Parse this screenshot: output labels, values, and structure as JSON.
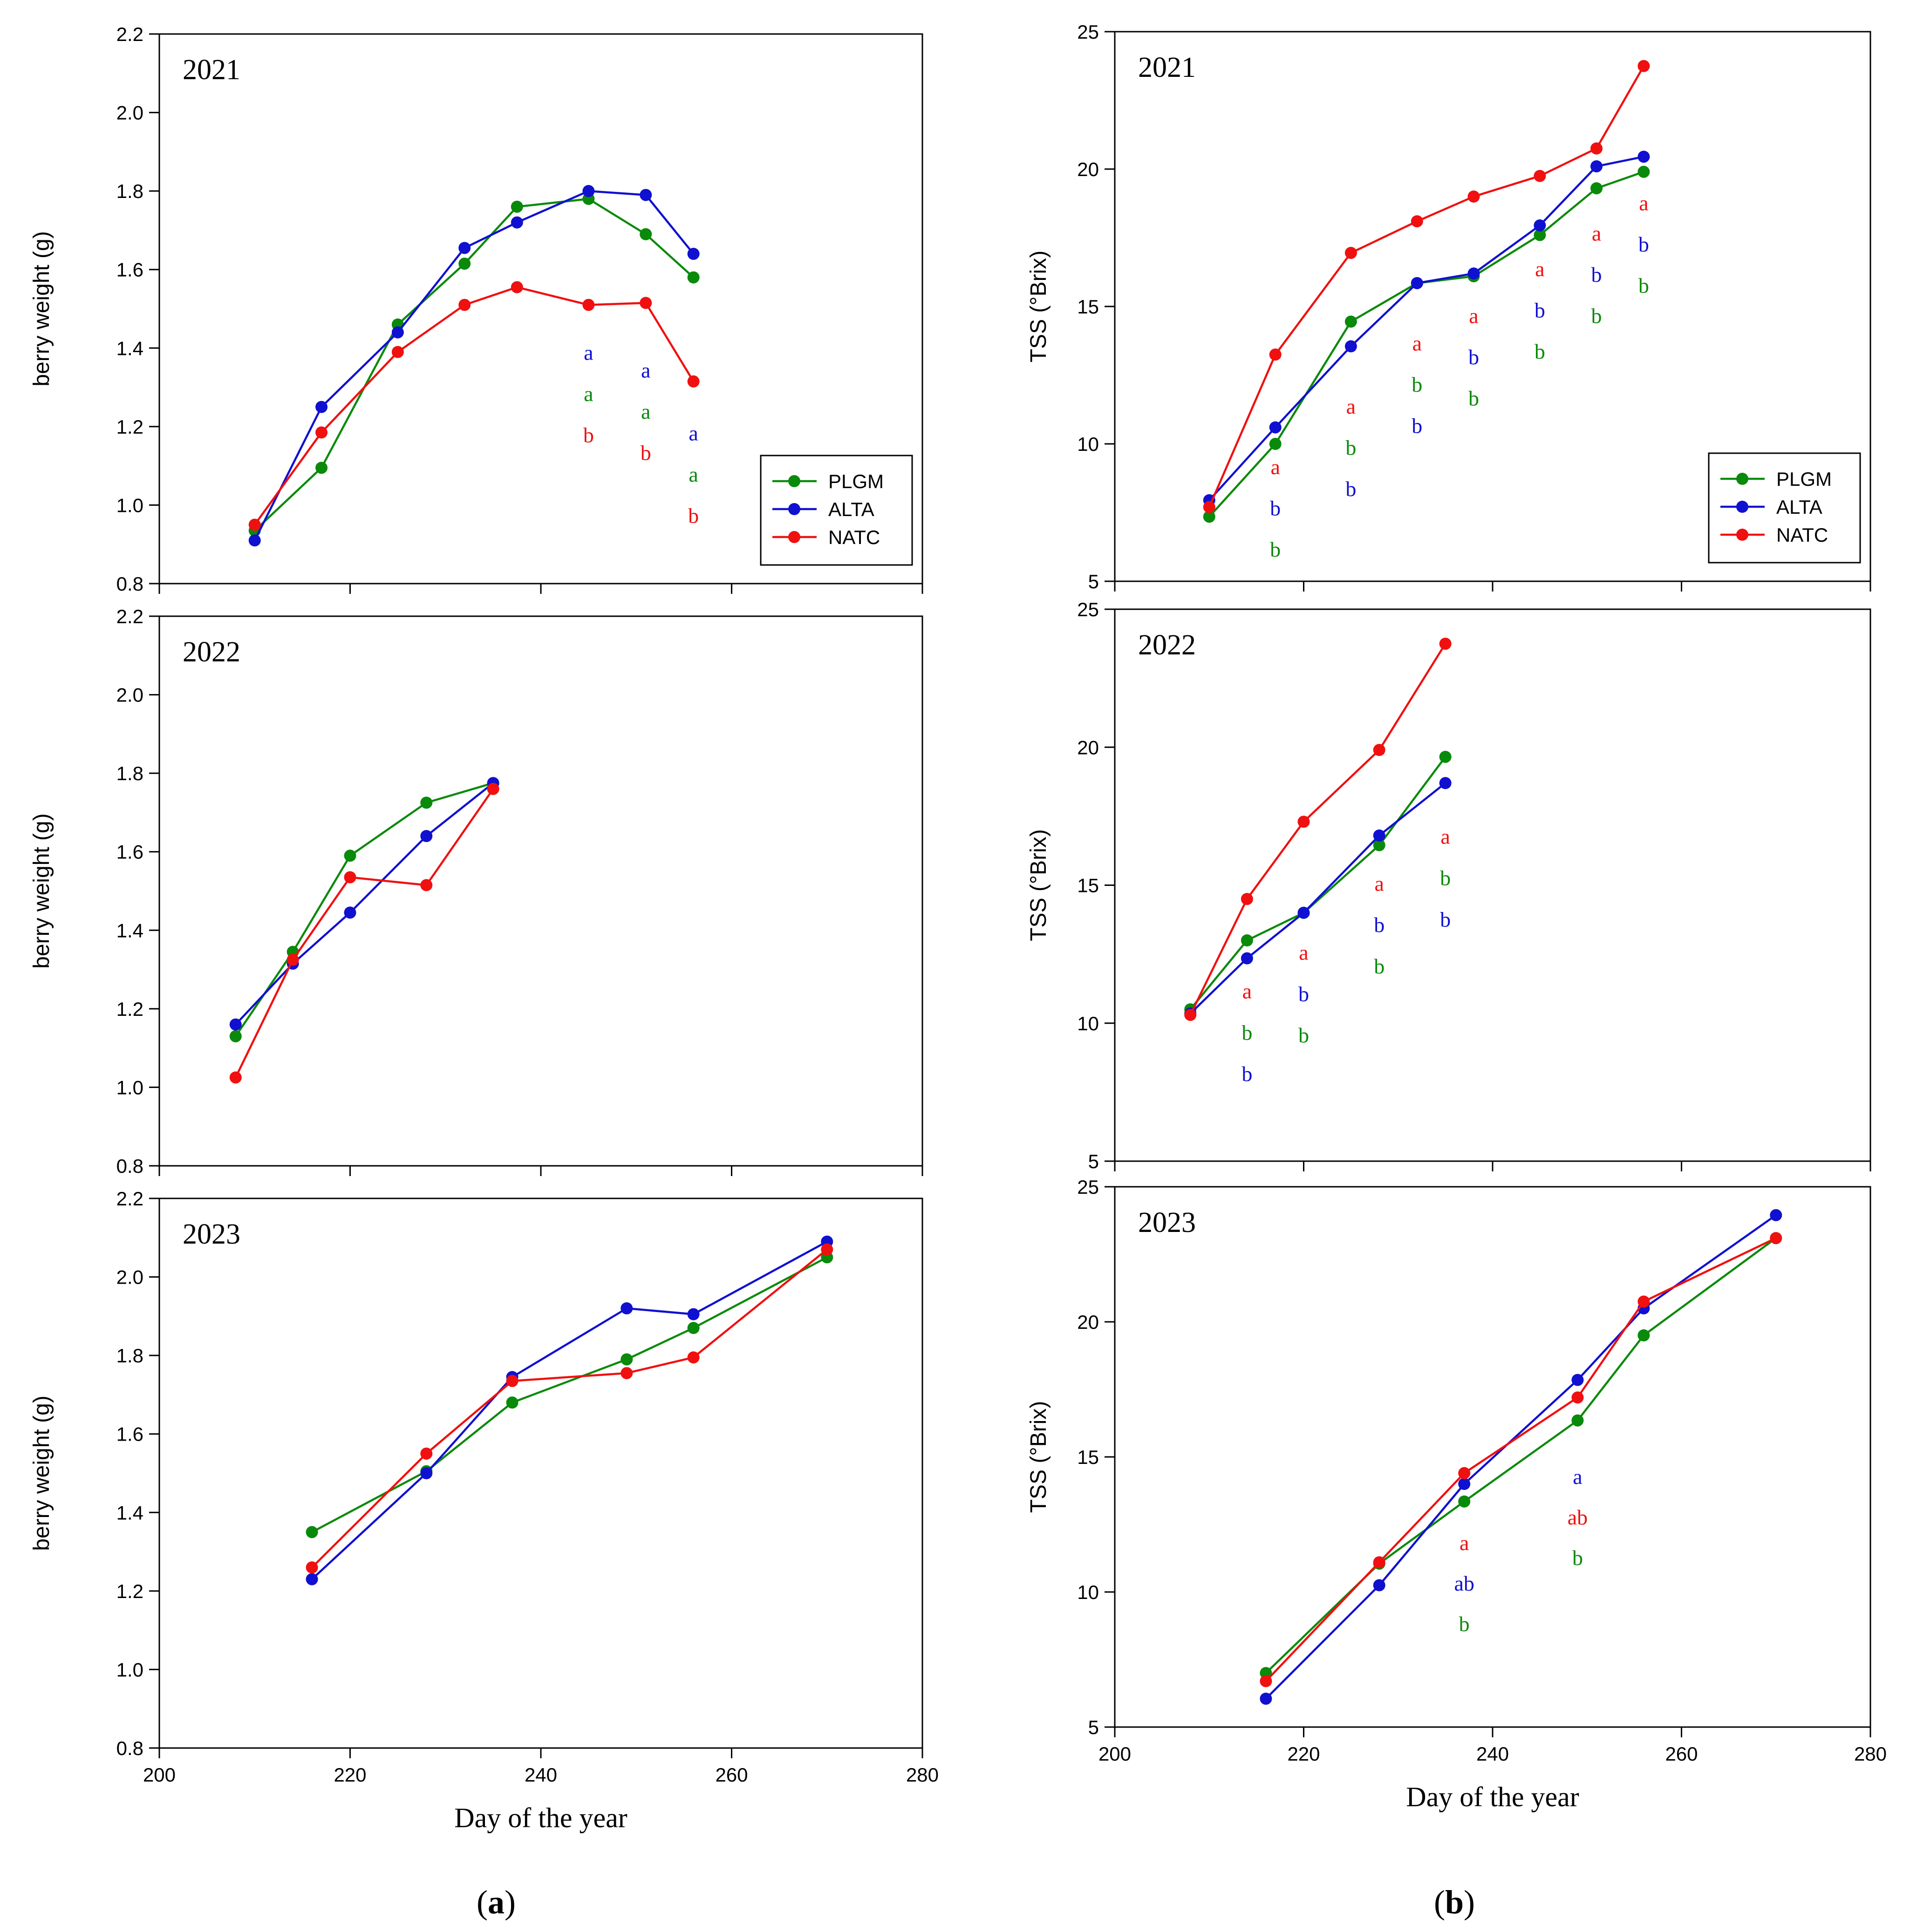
{
  "figure": {
    "panel_labels": [
      {
        "open": "(",
        "letter": "a",
        "close": ")"
      },
      {
        "open": "(",
        "letter": "b",
        "close": ")"
      }
    ]
  },
  "colors": {
    "PLGM": "#0a8a0a",
    "ALTA": "#1010d0",
    "NATC": "#f01010",
    "axis": "#000000"
  },
  "chart_data": [
    {
      "id": "bw2021",
      "type": "line",
      "col": 0,
      "row": 0,
      "year_label": "2021",
      "ylabel": "berry weight (g)",
      "xlabel": "",
      "xlim": [
        200,
        280
      ],
      "ylim": [
        0.8,
        2.2
      ],
      "xticks": [
        200,
        220,
        240,
        260,
        280
      ],
      "yticks": [
        0.8,
        1.0,
        1.2,
        1.4,
        1.6,
        1.8,
        2.0,
        2.2
      ],
      "xtick_labels": [],
      "ytick_labels": [
        "0.8",
        "1.0",
        "1.2",
        "1.4",
        "1.6",
        "1.8",
        "2.0",
        "2.2"
      ],
      "legend": {
        "position": "right-bottom",
        "entries": [
          "PLGM",
          "ALTA",
          "NATC"
        ]
      },
      "series": [
        {
          "name": "PLGM",
          "x": [
            210,
            217,
            225,
            232,
            237.5,
            245,
            251,
            256
          ],
          "y": [
            0.935,
            1.095,
            1.46,
            1.615,
            1.76,
            1.78,
            1.69,
            1.58
          ]
        },
        {
          "name": "ALTA",
          "x": [
            210,
            217,
            225,
            232,
            237.5,
            245,
            251,
            256
          ],
          "y": [
            0.91,
            1.25,
            1.44,
            1.655,
            1.72,
            1.8,
            1.79,
            1.64
          ]
        },
        {
          "name": "NATC",
          "x": [
            210,
            217,
            225,
            232,
            237.5,
            245,
            251,
            256
          ],
          "y": [
            0.95,
            1.185,
            1.39,
            1.51,
            1.555,
            1.51,
            1.515,
            1.315
          ]
        }
      ],
      "significance": [
        {
          "x": 245,
          "y_start": 1.37,
          "letters": [
            {
              "text": "a",
              "series": "ALTA"
            },
            {
              "text": "a",
              "series": "PLGM"
            },
            {
              "text": "b",
              "series": "NATC"
            }
          ]
        },
        {
          "x": 251,
          "y_start": 1.325,
          "letters": [
            {
              "text": "a",
              "series": "ALTA"
            },
            {
              "text": "a",
              "series": "PLGM"
            },
            {
              "text": "b",
              "series": "NATC"
            }
          ]
        },
        {
          "x": 256,
          "y_start": 1.165,
          "letters": [
            {
              "text": "a",
              "series": "ALTA"
            },
            {
              "text": "a",
              "series": "PLGM"
            },
            {
              "text": "b",
              "series": "NATC"
            }
          ]
        }
      ]
    },
    {
      "id": "bw2022",
      "type": "line",
      "col": 0,
      "row": 1,
      "year_label": "2022",
      "ylabel": "berry weight (g)",
      "xlabel": "",
      "xlim": [
        200,
        280
      ],
      "ylim": [
        0.8,
        2.2
      ],
      "xticks": [
        200,
        220,
        240,
        260,
        280
      ],
      "yticks": [
        0.8,
        1.0,
        1.2,
        1.4,
        1.6,
        1.8,
        2.0,
        2.2
      ],
      "xtick_labels": [],
      "ytick_labels": [
        "0.8",
        "1.0",
        "1.2",
        "1.4",
        "1.6",
        "1.8",
        "2.0",
        "2.2"
      ],
      "legend": null,
      "series": [
        {
          "name": "PLGM",
          "x": [
            208,
            214,
            220,
            228,
            235
          ],
          "y": [
            1.13,
            1.345,
            1.59,
            1.725,
            1.775
          ]
        },
        {
          "name": "ALTA",
          "x": [
            208,
            214,
            220,
            228,
            235
          ],
          "y": [
            1.16,
            1.315,
            1.445,
            1.64,
            1.775
          ]
        },
        {
          "name": "NATC",
          "x": [
            208,
            214,
            220,
            228,
            235
          ],
          "y": [
            1.025,
            1.325,
            1.535,
            1.515,
            1.76
          ]
        }
      ],
      "significance": []
    },
    {
      "id": "bw2023",
      "type": "line",
      "col": 0,
      "row": 2,
      "year_label": "2023",
      "ylabel": "berry weight (g)",
      "xlabel": "Day of the year",
      "xlim": [
        200,
        280
      ],
      "ylim": [
        0.8,
        2.2
      ],
      "xticks": [
        200,
        220,
        240,
        260,
        280
      ],
      "yticks": [
        0.8,
        1.0,
        1.2,
        1.4,
        1.6,
        1.8,
        2.0,
        2.2
      ],
      "xtick_labels": [
        "200",
        "220",
        "240",
        "260",
        "280"
      ],
      "ytick_labels": [
        "0.8",
        "1.0",
        "1.2",
        "1.4",
        "1.6",
        "1.8",
        "2.0",
        "2.2"
      ],
      "legend": null,
      "series": [
        {
          "name": "PLGM",
          "x": [
            216,
            228,
            237,
            249,
            256,
            270
          ],
          "y": [
            1.35,
            1.505,
            1.68,
            1.79,
            1.87,
            2.05
          ]
        },
        {
          "name": "ALTA",
          "x": [
            216,
            228,
            237,
            249,
            256,
            270
          ],
          "y": [
            1.23,
            1.5,
            1.745,
            1.92,
            1.905,
            2.09
          ]
        },
        {
          "name": "NATC",
          "x": [
            216,
            228,
            237,
            249,
            256,
            270
          ],
          "y": [
            1.26,
            1.55,
            1.735,
            1.755,
            1.795,
            2.07
          ]
        }
      ],
      "significance": []
    },
    {
      "id": "tss2021",
      "type": "line",
      "col": 1,
      "row": 0,
      "year_label": "2021",
      "ylabel": "TSS (°Brix)",
      "xlabel": "",
      "xlim": [
        200,
        280
      ],
      "ylim": [
        5,
        25
      ],
      "xticks": [
        200,
        220,
        240,
        260,
        280
      ],
      "yticks": [
        5,
        10,
        15,
        20,
        25
      ],
      "xtick_labels": [],
      "ytick_labels": [
        "5",
        "10",
        "15",
        "20",
        "25"
      ],
      "legend": {
        "position": "right-bottom",
        "entries": [
          "PLGM",
          "ALTA",
          "NATC"
        ]
      },
      "series": [
        {
          "name": "PLGM",
          "x": [
            210,
            217,
            225,
            232,
            238,
            245,
            251,
            256
          ],
          "y": [
            7.35,
            10.0,
            14.45,
            15.85,
            16.1,
            17.6,
            19.3,
            19.9
          ]
        },
        {
          "name": "ALTA",
          "x": [
            210,
            217,
            225,
            232,
            238,
            245,
            251,
            256
          ],
          "y": [
            7.95,
            10.6,
            13.55,
            15.85,
            16.2,
            17.95,
            20.1,
            20.45
          ]
        },
        {
          "name": "NATC",
          "x": [
            210,
            217,
            225,
            232,
            238,
            245,
            251,
            256
          ],
          "y": [
            7.7,
            13.25,
            16.95,
            18.1,
            19.0,
            19.75,
            20.75,
            23.75
          ]
        }
      ],
      "significance": [
        {
          "x": 217,
          "y_start": 8.9,
          "letters": [
            {
              "text": "a",
              "series": "NATC"
            },
            {
              "text": "b",
              "series": "ALTA"
            },
            {
              "text": "b",
              "series": "PLGM"
            }
          ]
        },
        {
          "x": 225,
          "y_start": 11.1,
          "letters": [
            {
              "text": "a",
              "series": "NATC"
            },
            {
              "text": "b",
              "series": "PLGM"
            },
            {
              "text": "b",
              "series": "ALTA"
            }
          ]
        },
        {
          "x": 232,
          "y_start": 13.4,
          "letters": [
            {
              "text": "a",
              "series": "NATC"
            },
            {
              "text": "b",
              "series": "PLGM"
            },
            {
              "text": "b",
              "series": "ALTA"
            }
          ]
        },
        {
          "x": 238,
          "y_start": 14.4,
          "letters": [
            {
              "text": "a",
              "series": "NATC"
            },
            {
              "text": "b",
              "series": "ALTA"
            },
            {
              "text": "b",
              "series": "PLGM"
            }
          ]
        },
        {
          "x": 245,
          "y_start": 16.1,
          "letters": [
            {
              "text": "a",
              "series": "NATC"
            },
            {
              "text": "b",
              "series": "ALTA"
            },
            {
              "text": "b",
              "series": "PLGM"
            }
          ]
        },
        {
          "x": 251,
          "y_start": 17.4,
          "letters": [
            {
              "text": "a",
              "series": "NATC"
            },
            {
              "text": "b",
              "series": "ALTA"
            },
            {
              "text": "b",
              "series": "PLGM"
            }
          ]
        },
        {
          "x": 256,
          "y_start": 18.5,
          "letters": [
            {
              "text": "a",
              "series": "NATC"
            },
            {
              "text": "b",
              "series": "ALTA"
            },
            {
              "text": "b",
              "series": "PLGM"
            }
          ]
        }
      ]
    },
    {
      "id": "tss2022",
      "type": "line",
      "col": 1,
      "row": 1,
      "year_label": "2022",
      "ylabel": "TSS (°Brix)",
      "xlabel": "",
      "xlim": [
        200,
        280
      ],
      "ylim": [
        5,
        25
      ],
      "xticks": [
        200,
        220,
        240,
        260,
        280
      ],
      "yticks": [
        5,
        10,
        15,
        20,
        25
      ],
      "xtick_labels": [],
      "ytick_labels": [
        "5",
        "10",
        "15",
        "20",
        "25"
      ],
      "legend": null,
      "series": [
        {
          "name": "PLGM",
          "x": [
            208,
            214,
            220,
            228,
            235
          ],
          "y": [
            10.5,
            13.0,
            14.0,
            16.45,
            19.65
          ]
        },
        {
          "name": "ALTA",
          "x": [
            208,
            214,
            220,
            228,
            235
          ],
          "y": [
            10.35,
            12.35,
            14.0,
            16.8,
            18.7
          ]
        },
        {
          "name": "NATC",
          "x": [
            208,
            214,
            220,
            228,
            235
          ],
          "y": [
            10.3,
            14.5,
            17.3,
            19.9,
            23.75
          ]
        }
      ],
      "significance": [
        {
          "x": 214,
          "y_start": 10.9,
          "letters": [
            {
              "text": "a",
              "series": "NATC"
            },
            {
              "text": "b",
              "series": "PLGM"
            },
            {
              "text": "b",
              "series": "ALTA"
            }
          ]
        },
        {
          "x": 220,
          "y_start": 12.3,
          "letters": [
            {
              "text": "a",
              "series": "NATC"
            },
            {
              "text": "b",
              "series": "ALTA"
            },
            {
              "text": "b",
              "series": "PLGM"
            }
          ]
        },
        {
          "x": 228,
          "y_start": 14.8,
          "letters": [
            {
              "text": "a",
              "series": "NATC"
            },
            {
              "text": "b",
              "series": "ALTA"
            },
            {
              "text": "b",
              "series": "PLGM"
            }
          ]
        },
        {
          "x": 235,
          "y_start": 16.5,
          "letters": [
            {
              "text": "a",
              "series": "NATC"
            },
            {
              "text": "b",
              "series": "PLGM"
            },
            {
              "text": "b",
              "series": "ALTA"
            }
          ]
        }
      ]
    },
    {
      "id": "tss2023",
      "type": "line",
      "col": 1,
      "row": 2,
      "year_label": "2023",
      "ylabel": "TSS (°Brix)",
      "xlabel": "Day of the year",
      "xlim": [
        200,
        280
      ],
      "ylim": [
        5,
        25
      ],
      "xticks": [
        200,
        220,
        240,
        260,
        280
      ],
      "yticks": [
        5,
        10,
        15,
        20,
        25
      ],
      "xtick_labels": [
        "200",
        "220",
        "240",
        "260",
        "280"
      ],
      "ytick_labels": [
        "5",
        "10",
        "15",
        "20",
        "25"
      ],
      "legend": null,
      "series": [
        {
          "name": "PLGM",
          "x": [
            216,
            228,
            237,
            249,
            256,
            270
          ],
          "y": [
            7.0,
            11.05,
            13.35,
            16.35,
            19.5,
            23.1
          ]
        },
        {
          "name": "ALTA",
          "x": [
            216,
            228,
            237,
            249,
            256,
            270
          ],
          "y": [
            6.05,
            10.25,
            14.0,
            17.85,
            20.5,
            23.95
          ]
        },
        {
          "name": "NATC",
          "x": [
            216,
            228,
            237,
            249,
            256,
            270
          ],
          "y": [
            6.7,
            11.1,
            14.4,
            17.2,
            20.75,
            23.1
          ]
        }
      ],
      "significance": [
        {
          "x": 237,
          "y_start": 11.55,
          "letters": [
            {
              "text": "a",
              "series": "NATC"
            },
            {
              "text": "ab",
              "series": "ALTA"
            },
            {
              "text": "b",
              "series": "PLGM"
            }
          ]
        },
        {
          "x": 249,
          "y_start": 14.0,
          "letters": [
            {
              "text": "a",
              "series": "ALTA"
            },
            {
              "text": "ab",
              "series": "NATC"
            },
            {
              "text": "b",
              "series": "PLGM"
            }
          ]
        }
      ]
    }
  ]
}
